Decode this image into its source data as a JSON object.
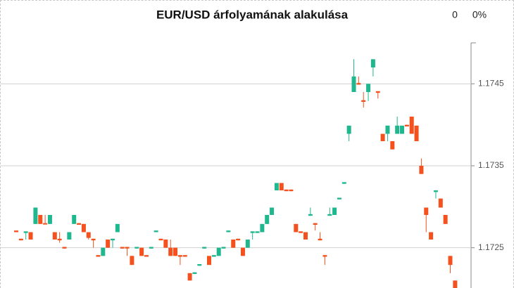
{
  "chart_data": {
    "type": "candlestick",
    "title": "EUR/USD árfolyamának alakulása",
    "header_value": "0",
    "header_change": "0%",
    "up_color": "#1fb88e",
    "down_color": "#f4511e",
    "ylim": [
      1.172,
      1.175
    ],
    "yticks": [
      1.1725,
      1.1735,
      1.1745
    ],
    "grid": true,
    "axis_side": "right",
    "open": [
      1.17271,
      1.17261,
      1.17268,
      1.17269,
      1.17279,
      1.1729,
      1.1728,
      1.17279,
      1.17269,
      1.17261,
      1.17251,
      1.1726,
      1.17279,
      1.1728,
      1.17279,
      1.17269,
      1.17261,
      1.17241,
      1.1724,
      1.1726,
      1.17259,
      1.17269,
      1.17251,
      1.17251,
      1.1724,
      1.17249,
      1.1725,
      1.17241,
      1.17249,
      1.17269,
      1.17261,
      1.1726,
      1.1725,
      1.1725,
      1.17241,
      1.17241,
      1.17219,
      1.17218,
      1.17228,
      1.17249,
      1.1724,
      1.17239,
      1.1724,
      1.17249,
      1.17269,
      1.1726,
      1.17261,
      1.1725,
      1.1725,
      1.17268,
      1.17268,
      1.17269,
      1.17279,
      1.1729,
      1.1732,
      1.17329,
      1.17321,
      1.17321,
      1.17279,
      1.1727,
      1.17269,
      1.17289,
      1.1728,
      1.17261,
      1.17241,
      1.17289,
      1.1729,
      1.17309,
      1.17328,
      1.17389,
      1.1744,
      1.17451,
      1.1743,
      1.1744,
      1.1747,
      1.17441,
      1.17389,
      1.17389,
      1.1738,
      1.17389,
      1.17389,
      1.174,
      1.1741,
      1.17399,
      1.1735,
      1.17299,
      1.17269,
      1.17318,
      1.1731,
      1.1729,
      1.1724,
      1.1721
    ],
    "high": [
      1.17271,
      1.17261,
      1.1727,
      1.17269,
      1.17299,
      1.1729,
      1.1729,
      1.1729,
      1.17269,
      1.17269,
      1.17251,
      1.17269,
      1.1729,
      1.1728,
      1.17279,
      1.17269,
      1.17261,
      1.17241,
      1.1725,
      1.1726,
      1.17261,
      1.17279,
      1.17251,
      1.17251,
      1.1724,
      1.17251,
      1.1725,
      1.17241,
      1.17251,
      1.17271,
      1.17261,
      1.1726,
      1.1726,
      1.1725,
      1.17241,
      1.17241,
      1.17219,
      1.1722,
      1.1723,
      1.17251,
      1.1724,
      1.17241,
      1.1725,
      1.17251,
      1.17271,
      1.1726,
      1.17261,
      1.1725,
      1.1726,
      1.1727,
      1.1727,
      1.17279,
      1.1729,
      1.17299,
      1.17329,
      1.17329,
      1.17321,
      1.17321,
      1.17279,
      1.1727,
      1.17269,
      1.17299,
      1.1728,
      1.17269,
      1.17241,
      1.17299,
      1.17299,
      1.17311,
      1.1733,
      1.17399,
      1.1748,
      1.17459,
      1.1744,
      1.1745,
      1.1748,
      1.17441,
      1.17389,
      1.17399,
      1.1738,
      1.1741,
      1.17399,
      1.174,
      1.1741,
      1.17399,
      1.17359,
      1.17299,
      1.17269,
      1.1732,
      1.1731,
      1.1729,
      1.1724,
      1.1721
    ],
    "low": [
      1.17269,
      1.17259,
      1.1726,
      1.1726,
      1.17279,
      1.17279,
      1.17279,
      1.17279,
      1.1726,
      1.17256,
      1.17249,
      1.1726,
      1.17279,
      1.17278,
      1.17269,
      1.1726,
      1.1725,
      1.17239,
      1.1724,
      1.1725,
      1.1725,
      1.17269,
      1.17249,
      1.1724,
      1.17229,
      1.17249,
      1.1724,
      1.17239,
      1.17249,
      1.17269,
      1.17259,
      1.1725,
      1.1724,
      1.1724,
      1.17229,
      1.17239,
      1.1721,
      1.17218,
      1.17228,
      1.17249,
      1.17229,
      1.17239,
      1.1724,
      1.17249,
      1.17269,
      1.1725,
      1.17259,
      1.1724,
      1.1725,
      1.1726,
      1.17268,
      1.17269,
      1.17279,
      1.1729,
      1.1732,
      1.1732,
      1.17319,
      1.17319,
      1.17269,
      1.17268,
      1.1726,
      1.17289,
      1.17271,
      1.17259,
      1.17229,
      1.17289,
      1.1729,
      1.17309,
      1.17328,
      1.1738,
      1.1744,
      1.17449,
      1.17421,
      1.17429,
      1.17459,
      1.17432,
      1.1738,
      1.1738,
      1.1737,
      1.17389,
      1.17389,
      1.17398,
      1.17389,
      1.1738,
      1.1734,
      1.17269,
      1.1726,
      1.1731,
      1.17299,
      1.17279,
      1.17219,
      1.172
    ],
    "close": [
      1.17269,
      1.17259,
      1.1727,
      1.1726,
      1.17299,
      1.17279,
      1.17279,
      1.1729,
      1.1726,
      1.17259,
      1.17249,
      1.17269,
      1.1729,
      1.17278,
      1.17269,
      1.17262,
      1.17259,
      1.17239,
      1.1725,
      1.1725,
      1.17261,
      1.17279,
      1.17249,
      1.17249,
      1.17229,
      1.17251,
      1.1724,
      1.17239,
      1.17251,
      1.17271,
      1.17259,
      1.1725,
      1.1724,
      1.1724,
      1.17239,
      1.17239,
      1.1721,
      1.1722,
      1.1723,
      1.17251,
      1.17229,
      1.17241,
      1.1725,
      1.17251,
      1.17271,
      1.1725,
      1.17259,
      1.1724,
      1.1726,
      1.1727,
      1.1727,
      1.17279,
      1.1729,
      1.17299,
      1.17329,
      1.1732,
      1.17319,
      1.17319,
      1.17269,
      1.17268,
      1.1726,
      1.17291,
      1.17278,
      1.17259,
      1.17239,
      1.17291,
      1.17299,
      1.17311,
      1.1733,
      1.17399,
      1.17459,
      1.17449,
      1.17428,
      1.1745,
      1.1748,
      1.17439,
      1.1738,
      1.17399,
      1.1737,
      1.17399,
      1.17399,
      1.17398,
      1.17389,
      1.1738,
      1.1734,
      1.1729,
      1.1726,
      1.1732,
      1.17299,
      1.17279,
      1.17229,
      1.172
    ]
  }
}
